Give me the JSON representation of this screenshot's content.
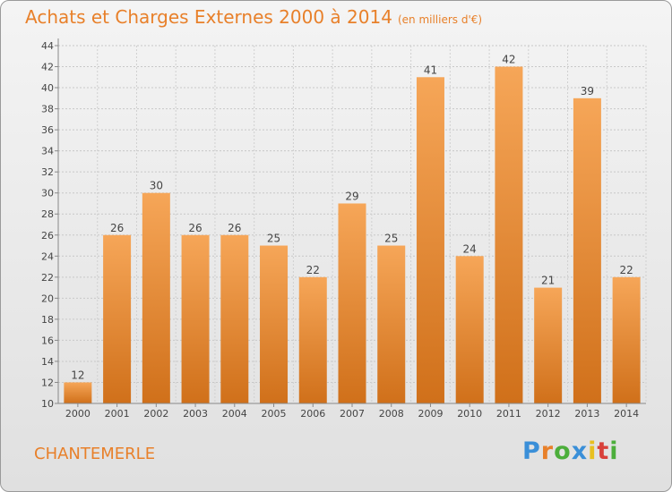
{
  "title": "Achats et Charges Externes 2000 à 2014",
  "subtitle": "(en milliers d'€)",
  "city": "CHANTEMERLE",
  "logo": {
    "letters": [
      "P",
      "r",
      "o",
      "x",
      "i",
      "t",
      "i"
    ],
    "colors": [
      "#3a8fd8",
      "#e8802a",
      "#4cae3b",
      "#3a8fd8",
      "#e8c020",
      "#d8403a",
      "#4cae3b"
    ]
  },
  "colors": {
    "bar_top": "#f6a658",
    "bar_bottom": "#d0701a",
    "accent": "#e8802a"
  },
  "chart_data": {
    "type": "bar",
    "categories": [
      "2000",
      "2001",
      "2002",
      "2003",
      "2004",
      "2005",
      "2006",
      "2007",
      "2008",
      "2009",
      "2010",
      "2011",
      "2012",
      "2013",
      "2014"
    ],
    "values": [
      12,
      26,
      30,
      26,
      26,
      25,
      22,
      29,
      25,
      41,
      24,
      42,
      21,
      39,
      22
    ],
    "ylim": [
      10,
      44
    ],
    "yticks": [
      10,
      12,
      14,
      16,
      18,
      20,
      22,
      24,
      26,
      28,
      30,
      32,
      34,
      36,
      38,
      40,
      42,
      44
    ],
    "grid": true,
    "data_labels": true
  }
}
